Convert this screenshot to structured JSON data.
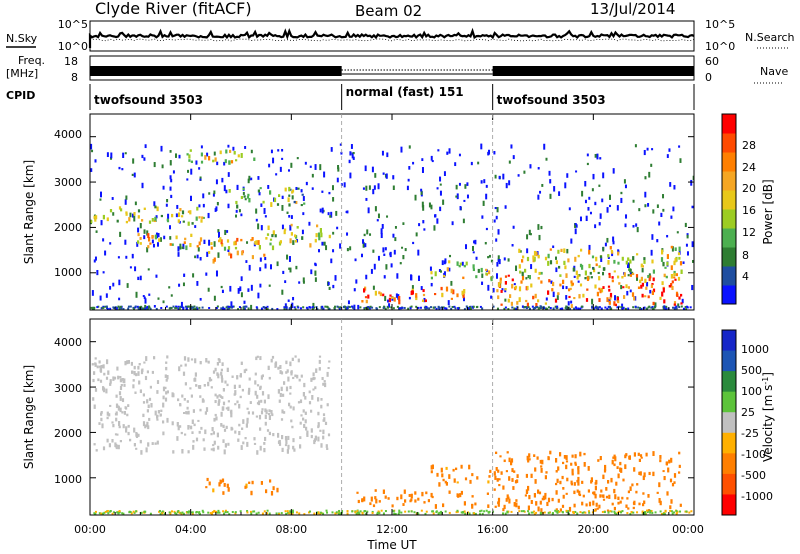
{
  "header": {
    "station": "Clyde River (fitACF)",
    "beam": "Beam 02",
    "date": "13/Jul/2014"
  },
  "left_labels": {
    "nsky": "N.Sky",
    "freq_line1": "Freq.",
    "freq_line2": "[MHz]",
    "cpid": "CPID"
  },
  "right_labels": {
    "nsearch": "N.Search",
    "nave": "Nave"
  },
  "noise_panel": {
    "left_ticks": [
      "10^5",
      "10^0"
    ],
    "right_ticks": [
      "10^5",
      "10^0"
    ]
  },
  "freq_panel": {
    "left_ticks": [
      "18",
      "8"
    ],
    "right_ticks": [
      "60",
      "0"
    ]
  },
  "cpid_panel": {
    "modes": [
      {
        "label": "twofsound 3503",
        "start_hour": 0,
        "end_hour": 10
      },
      {
        "label": "normal (fast) 151",
        "start_hour": 10,
        "end_hour": 16
      },
      {
        "label": "twofsound 3503",
        "start_hour": 16,
        "end_hour": 24
      }
    ]
  },
  "x_axis": {
    "label": "Time UT",
    "ticks": [
      "00:00",
      "04:00",
      "08:00",
      "12:00",
      "16:00",
      "20:00",
      "00:00"
    ]
  },
  "power_panel": {
    "ylabel": "Slant Range [km]",
    "yticks": [
      "4000",
      "3000",
      "2000",
      "1000"
    ],
    "colorbar_label": "Power [dB]",
    "colorbar_ticks": [
      "28",
      "24",
      "20",
      "16",
      "12",
      "8",
      "4"
    ],
    "colors": [
      "#0a12ff",
      "#1f4ea0",
      "#2e7d32",
      "#4caf50",
      "#9ccc22",
      "#e8c81a",
      "#f5a623",
      "#ff7f00",
      "#ff4a00",
      "#ff0000"
    ]
  },
  "velocity_panel": {
    "ylabel": "Slant Range [km]",
    "yticks": [
      "4000",
      "3000",
      "2000",
      "1000"
    ],
    "colorbar_label": "Velocity [m s^-1]",
    "colorbar_ticks": [
      "1000",
      "500",
      "100",
      "25",
      "-25",
      "-100",
      "-500",
      "-1000"
    ],
    "colors": [
      "#1626c8",
      "#1c55b4",
      "#2a8a3c",
      "#5cc33a",
      "#c0c0c0",
      "#ffb000",
      "#ff7f00",
      "#ff5000",
      "#ff0000"
    ]
  },
  "chart_data": {
    "type": "heatmap",
    "title": "Clyde River (fitACF)",
    "xlabel": "Time UT",
    "ylabel": "Slant Range [km]",
    "xlim": [
      0,
      24
    ],
    "ylim": [
      180,
      4500
    ],
    "x_ticks_hours": [
      0,
      4,
      8,
      12,
      16,
      20,
      24
    ],
    "y_ticks_km": [
      4000,
      3000,
      2000,
      1000
    ],
    "mode_boundaries_hours": [
      10,
      16
    ],
    "power_scatter_regions": [
      {
        "t0": 0.0,
        "t1": 4.5,
        "r0": 2100,
        "r1": 2500,
        "power": 14
      },
      {
        "t0": 1.5,
        "t1": 4.5,
        "r0": 1600,
        "r1": 1900,
        "power": 20
      },
      {
        "t0": 4.5,
        "t1": 7.0,
        "r0": 1300,
        "r1": 1800,
        "power": 20
      },
      {
        "t0": 7.0,
        "t1": 9.5,
        "r0": 1600,
        "r1": 2100,
        "power": 14
      },
      {
        "t0": 3.5,
        "t1": 6.5,
        "r0": 3450,
        "r1": 3750,
        "power": 18
      },
      {
        "t0": 5.5,
        "t1": 8.5,
        "r0": 2500,
        "r1": 2900,
        "power": 12
      },
      {
        "t0": 10.5,
        "t1": 15.5,
        "r0": 400,
        "r1": 700,
        "power": 24
      },
      {
        "t0": 13.5,
        "t1": 16.0,
        "r0": 900,
        "r1": 1300,
        "power": 16
      },
      {
        "t0": 16.0,
        "t1": 23.5,
        "r0": 300,
        "r1": 1000,
        "power": 24
      },
      {
        "t0": 17.0,
        "t1": 23.5,
        "r0": 900,
        "r1": 1600,
        "power": 16
      }
    ],
    "velocity_scatter_regions": [
      {
        "t0": 0.0,
        "t1": 9.5,
        "r0": 1600,
        "r1": 3700,
        "velocity": 0
      },
      {
        "t0": 4.5,
        "t1": 7.5,
        "r0": 700,
        "r1": 1000,
        "velocity": -200
      },
      {
        "t0": 10.5,
        "t1": 16.0,
        "r0": 400,
        "r1": 750,
        "velocity": -250
      },
      {
        "t0": 13.5,
        "t1": 16.0,
        "r0": 900,
        "r1": 1300,
        "velocity": -200
      },
      {
        "t0": 16.0,
        "t1": 23.5,
        "r0": 300,
        "r1": 1600,
        "velocity": -300
      }
    ]
  }
}
